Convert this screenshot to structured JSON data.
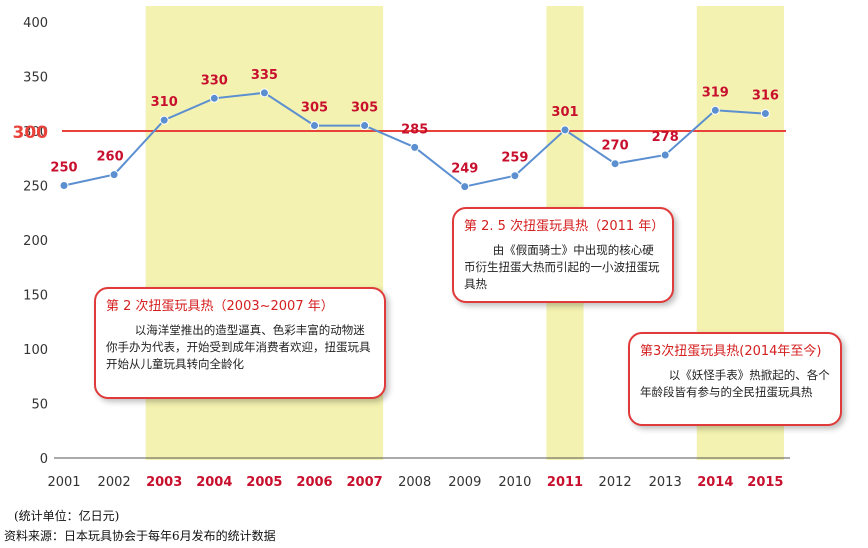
{
  "chart_data": {
    "type": "line",
    "categories": [
      "2001",
      "2002",
      "2003",
      "2004",
      "2005",
      "2006",
      "2007",
      "2008",
      "2009",
      "2010",
      "2011",
      "2012",
      "2013",
      "2014",
      "2015"
    ],
    "values": [
      250,
      260,
      310,
      330,
      335,
      305,
      305,
      285,
      249,
      259,
      301,
      270,
      278,
      319,
      316
    ],
    "data_labels": [
      "250",
      "260",
      "310",
      "330",
      "335",
      "305",
      "305",
      "285",
      "249",
      "259",
      "301",
      "270",
      "278",
      "319",
      "316"
    ],
    "highlighted_years": [
      "2003",
      "2004",
      "2005",
      "2006",
      "2007",
      "2011",
      "2014",
      "2015"
    ],
    "highlight_bands": [
      [
        "2003",
        "2007"
      ],
      [
        "2011",
        "2011"
      ],
      [
        "2014",
        "2015"
      ]
    ],
    "reference_line": {
      "value": 300,
      "label": "300"
    },
    "ylim": [
      0,
      400
    ],
    "yticks": [
      "0",
      "50",
      "100",
      "150",
      "200",
      "250",
      "300",
      "350",
      "400"
    ],
    "grid": false,
    "colors": {
      "line": "#5b8fd0",
      "marker": "#5b8fd0",
      "reference": "#e8423a",
      "band": "#f3f2b0",
      "label": "#c8102e",
      "axis": "#333333"
    }
  },
  "callouts": [
    {
      "title": "第 2 次扭蛋玩具热（2003~2007 年）",
      "text": "以海洋堂推出的造型逼真、色彩丰富的动物迷你手办为代表，开始受到成年消费者欢迎，扭蛋玩具开始从儿童玩具转向全龄化"
    },
    {
      "title": "第 2. 5 次扭蛋玩具热（2011 年）",
      "text": "由《假面骑士》中出现的核心硬币衍生扭蛋大热而引起的一小波扭蛋玩具热"
    },
    {
      "title": "第3次扭蛋玩具热(2014年至今)",
      "text": "以《妖怪手表》热掀起的、各个年龄段皆有参与的全民扭蛋玩具热"
    }
  ],
  "footer": {
    "unit": "(统计单位：亿日元)",
    "source": "资料来源：日本玩具协会于每年6月发布的统计数据"
  }
}
